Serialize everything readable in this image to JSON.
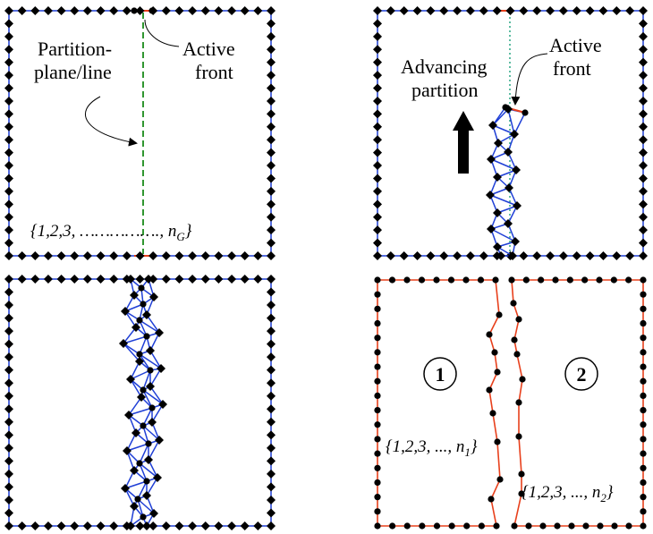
{
  "colors": {
    "mesh_edge": "#1f3fd6",
    "partition_edge": "#e8401c",
    "partition_line": "#1a8a1a",
    "active_front_line": "#1aa07a",
    "node": "#000000"
  },
  "panel_top_left": {
    "label_partition_line1": "Partition-",
    "label_partition_line2": "plane/line",
    "label_active_line1": "Active",
    "label_active_line2": "front",
    "set_prefix": "{1,2,3, ……………., n",
    "set_sub": "G",
    "set_suffix": "}"
  },
  "panel_top_right": {
    "label_advancing_line1": "Advancing",
    "label_advancing_line2": "partition",
    "label_active_line1": "Active",
    "label_active_line2": "front"
  },
  "panel_bottom_right": {
    "region1": "1",
    "region2": "2",
    "set1_prefix": "{1,2,3, ..., n",
    "set1_sub": "1",
    "set1_suffix": "}",
    "set2_prefix": "{1,2,3, ..., n",
    "set2_sub": "2",
    "set2_suffix": "}"
  }
}
